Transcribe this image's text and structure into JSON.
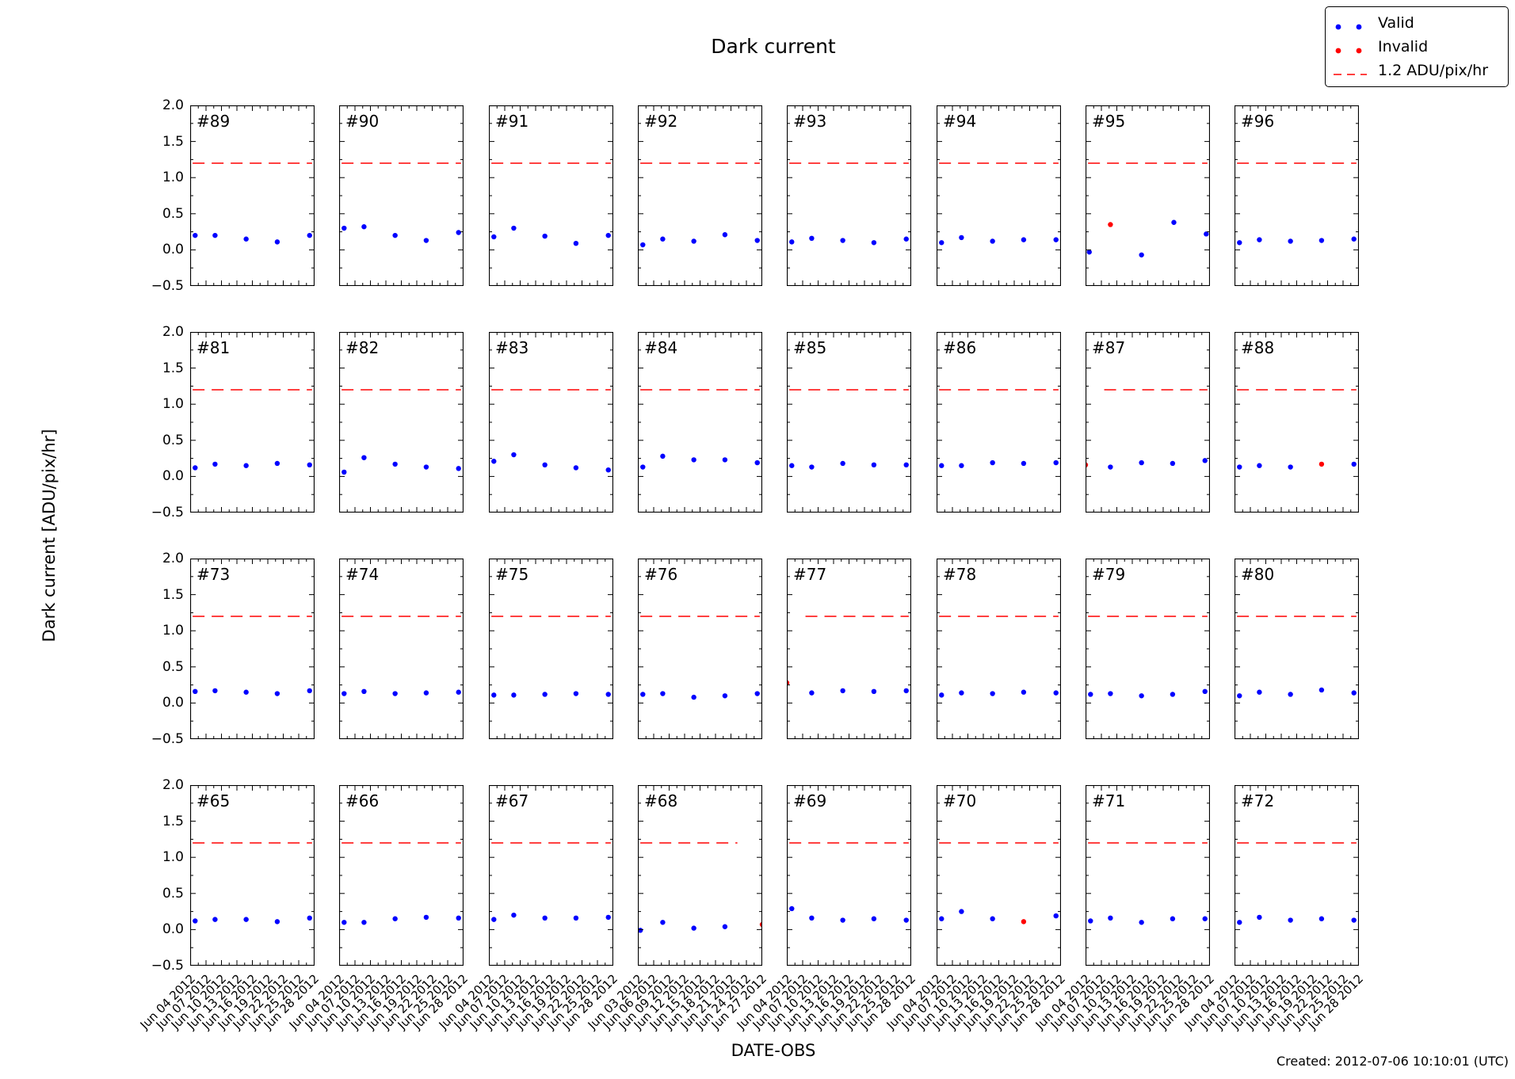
{
  "page": {
    "title": "Dark current",
    "ylabel": "Dark current [ADU/pix/hr]",
    "xlabel": "DATE-OBS",
    "created": "Created: 2012-07-06 10:10:01 (UTC)"
  },
  "legend": {
    "items": [
      {
        "label": "Valid",
        "marker": "two-dots",
        "color": "#0000ff"
      },
      {
        "label": "Invalid",
        "marker": "two-dots",
        "color": "#ff0000"
      },
      {
        "label": "1.2 ADU/pix/hr",
        "marker": "dashed-line",
        "color": "#ff0000"
      }
    ]
  },
  "chart_data": {
    "type": "scatter",
    "title": "Dark current",
    "xlabel": "DATE-OBS",
    "ylabel": "Dark current [ADU/pix/hr]",
    "grid": {
      "rows": 4,
      "cols": 8
    },
    "ylim": [
      -0.5,
      2.0
    ],
    "y_ticks": [
      2.0,
      1.5,
      1.0,
      0.5,
      0.0,
      -0.5
    ],
    "y_tick_labels": [
      "2.0",
      "1.5",
      "1.0",
      "0.5",
      "0.0",
      "−0.5"
    ],
    "threshold": {
      "value": 1.2,
      "label": "1.2 ADU/pix/hr",
      "color": "#ff0000"
    },
    "colors": {
      "valid": "#0000ff",
      "invalid": "#ff0000"
    },
    "point_format": [
      "x_fraction_of_axis",
      "value_ADU_per_pix_hr",
      "status(optional, default valid)"
    ],
    "x_tick_sets": {
      "default": [
        "Jun 04 2012",
        "Jun 07 2012",
        "Jun 10 2012",
        "Jun 13 2012",
        "Jun 16 2012",
        "Jun 19 2012",
        "Jun 22 2012",
        "Jun 25 2012",
        "Jun 28 2012"
      ],
      "col4": [
        "Jun 03 2012",
        "Jun 06 2012",
        "Jun 09 2012",
        "Jun 12 2012",
        "Jun 15 2012",
        "Jun 18 2012",
        "Jun 21 2012",
        "Jun 24 2012",
        "Jun 27 2012"
      ]
    },
    "panels": [
      {
        "id": "#89",
        "row": 0,
        "col": 0,
        "x_tick_set": "default",
        "points": [
          [
            0.04,
            0.2
          ],
          [
            0.2,
            0.2
          ],
          [
            0.45,
            0.15
          ],
          [
            0.7,
            0.11
          ],
          [
            0.96,
            0.2
          ]
        ]
      },
      {
        "id": "#90",
        "row": 0,
        "col": 1,
        "x_tick_set": "default",
        "points": [
          [
            0.04,
            0.3
          ],
          [
            0.2,
            0.32
          ],
          [
            0.45,
            0.2
          ],
          [
            0.7,
            0.13
          ],
          [
            0.96,
            0.24
          ]
        ]
      },
      {
        "id": "#91",
        "row": 0,
        "col": 2,
        "x_tick_set": "default",
        "points": [
          [
            0.04,
            0.18
          ],
          [
            0.2,
            0.3
          ],
          [
            0.45,
            0.19
          ],
          [
            0.7,
            0.09
          ],
          [
            0.96,
            0.2
          ]
        ]
      },
      {
        "id": "#92",
        "row": 0,
        "col": 3,
        "x_tick_set": "col4",
        "points": [
          [
            0.04,
            0.07
          ],
          [
            0.2,
            0.15
          ],
          [
            0.45,
            0.12
          ],
          [
            0.7,
            0.21
          ],
          [
            0.96,
            0.13
          ]
        ]
      },
      {
        "id": "#93",
        "row": 0,
        "col": 4,
        "x_tick_set": "default",
        "points": [
          [
            0.04,
            0.11
          ],
          [
            0.2,
            0.16
          ],
          [
            0.45,
            0.13
          ],
          [
            0.7,
            0.1
          ],
          [
            0.96,
            0.15
          ]
        ]
      },
      {
        "id": "#94",
        "row": 0,
        "col": 5,
        "x_tick_set": "default",
        "points": [
          [
            0.04,
            0.1
          ],
          [
            0.2,
            0.17
          ],
          [
            0.45,
            0.12
          ],
          [
            0.7,
            0.14
          ],
          [
            0.96,
            0.14
          ]
        ]
      },
      {
        "id": "#95",
        "row": 0,
        "col": 6,
        "x_tick_set": "default",
        "points": [
          [
            0.03,
            -0.03
          ],
          [
            0.2,
            0.35,
            "invalid"
          ],
          [
            0.45,
            -0.07
          ],
          [
            0.71,
            0.38
          ],
          [
            0.97,
            0.22
          ]
        ]
      },
      {
        "id": "#96",
        "row": 0,
        "col": 7,
        "x_tick_set": "default",
        "points": [
          [
            0.04,
            0.1
          ],
          [
            0.2,
            0.14
          ],
          [
            0.45,
            0.12
          ],
          [
            0.7,
            0.13
          ],
          [
            0.96,
            0.15
          ]
        ]
      },
      {
        "id": "#81",
        "row": 1,
        "col": 0,
        "x_tick_set": "default",
        "points": [
          [
            0.04,
            0.12
          ],
          [
            0.2,
            0.17
          ],
          [
            0.45,
            0.15
          ],
          [
            0.7,
            0.18
          ],
          [
            0.96,
            0.16
          ]
        ]
      },
      {
        "id": "#82",
        "row": 1,
        "col": 1,
        "x_tick_set": "default",
        "points": [
          [
            0.04,
            0.06
          ],
          [
            0.2,
            0.26
          ],
          [
            0.45,
            0.17
          ],
          [
            0.7,
            0.13
          ],
          [
            0.96,
            0.11
          ]
        ]
      },
      {
        "id": "#83",
        "row": 1,
        "col": 2,
        "x_tick_set": "default",
        "points": [
          [
            0.04,
            0.21
          ],
          [
            0.2,
            0.3
          ],
          [
            0.45,
            0.16
          ],
          [
            0.7,
            0.12
          ],
          [
            0.96,
            0.09
          ]
        ]
      },
      {
        "id": "#84",
        "row": 1,
        "col": 3,
        "x_tick_set": "col4",
        "points": [
          [
            0.04,
            0.13
          ],
          [
            0.2,
            0.28
          ],
          [
            0.45,
            0.23
          ],
          [
            0.7,
            0.23
          ],
          [
            0.96,
            0.19
          ]
        ]
      },
      {
        "id": "#85",
        "row": 1,
        "col": 4,
        "x_tick_set": "default",
        "points": [
          [
            0.04,
            0.15
          ],
          [
            0.2,
            0.13
          ],
          [
            0.45,
            0.18
          ],
          [
            0.7,
            0.16
          ],
          [
            0.96,
            0.16
          ]
        ]
      },
      {
        "id": "#86",
        "row": 1,
        "col": 5,
        "x_tick_set": "default",
        "points": [
          [
            0.04,
            0.15
          ],
          [
            0.2,
            0.15
          ],
          [
            0.45,
            0.19
          ],
          [
            0.7,
            0.18
          ],
          [
            0.96,
            0.19
          ]
        ]
      },
      {
        "id": "#87",
        "row": 1,
        "col": 6,
        "x_tick_set": "default",
        "dash_span": [
          0.15,
          0.98
        ],
        "points": [
          [
            0.0,
            0.16,
            "invalid"
          ],
          [
            0.2,
            0.13
          ],
          [
            0.45,
            0.19
          ],
          [
            0.7,
            0.18
          ],
          [
            0.96,
            0.22
          ]
        ]
      },
      {
        "id": "#88",
        "row": 1,
        "col": 7,
        "x_tick_set": "default",
        "points": [
          [
            0.04,
            0.13
          ],
          [
            0.2,
            0.15
          ],
          [
            0.45,
            0.13
          ],
          [
            0.7,
            0.17,
            "invalid"
          ],
          [
            0.96,
            0.17
          ]
        ]
      },
      {
        "id": "#73",
        "row": 2,
        "col": 0,
        "x_tick_set": "default",
        "points": [
          [
            0.04,
            0.16
          ],
          [
            0.2,
            0.17
          ],
          [
            0.45,
            0.15
          ],
          [
            0.7,
            0.13
          ],
          [
            0.96,
            0.17
          ]
        ]
      },
      {
        "id": "#74",
        "row": 2,
        "col": 1,
        "x_tick_set": "default",
        "points": [
          [
            0.04,
            0.13
          ],
          [
            0.2,
            0.16
          ],
          [
            0.45,
            0.13
          ],
          [
            0.7,
            0.14
          ],
          [
            0.96,
            0.15
          ]
        ]
      },
      {
        "id": "#75",
        "row": 2,
        "col": 2,
        "x_tick_set": "default",
        "points": [
          [
            0.04,
            0.11
          ],
          [
            0.2,
            0.11
          ],
          [
            0.45,
            0.12
          ],
          [
            0.7,
            0.13
          ],
          [
            0.96,
            0.12
          ]
        ]
      },
      {
        "id": "#76",
        "row": 2,
        "col": 3,
        "x_tick_set": "col4",
        "points": [
          [
            0.04,
            0.12
          ],
          [
            0.2,
            0.13
          ],
          [
            0.45,
            0.08
          ],
          [
            0.7,
            0.1
          ],
          [
            0.96,
            0.13
          ]
        ]
      },
      {
        "id": "#77",
        "row": 2,
        "col": 4,
        "x_tick_set": "default",
        "dash_span": [
          0.15,
          0.98
        ],
        "points": [
          [
            0.0,
            0.28,
            "invalid"
          ],
          [
            0.2,
            0.14
          ],
          [
            0.45,
            0.17
          ],
          [
            0.7,
            0.16
          ],
          [
            0.96,
            0.17
          ]
        ]
      },
      {
        "id": "#78",
        "row": 2,
        "col": 5,
        "x_tick_set": "default",
        "points": [
          [
            0.04,
            0.11
          ],
          [
            0.2,
            0.14
          ],
          [
            0.45,
            0.13
          ],
          [
            0.7,
            0.15
          ],
          [
            0.96,
            0.14
          ]
        ]
      },
      {
        "id": "#79",
        "row": 2,
        "col": 6,
        "x_tick_set": "default",
        "points": [
          [
            0.04,
            0.12
          ],
          [
            0.2,
            0.13
          ],
          [
            0.45,
            0.1
          ],
          [
            0.7,
            0.12
          ],
          [
            0.96,
            0.16
          ]
        ]
      },
      {
        "id": "#80",
        "row": 2,
        "col": 7,
        "x_tick_set": "default",
        "points": [
          [
            0.04,
            0.1
          ],
          [
            0.2,
            0.15
          ],
          [
            0.45,
            0.12
          ],
          [
            0.7,
            0.18
          ],
          [
            0.96,
            0.14
          ]
        ]
      },
      {
        "id": "#65",
        "row": 3,
        "col": 0,
        "x_tick_set": "default",
        "points": [
          [
            0.04,
            0.12
          ],
          [
            0.2,
            0.14
          ],
          [
            0.45,
            0.14
          ],
          [
            0.7,
            0.11
          ],
          [
            0.96,
            0.16
          ]
        ]
      },
      {
        "id": "#66",
        "row": 3,
        "col": 1,
        "x_tick_set": "default",
        "points": [
          [
            0.04,
            0.1
          ],
          [
            0.2,
            0.1
          ],
          [
            0.45,
            0.15
          ],
          [
            0.7,
            0.17
          ],
          [
            0.96,
            0.16
          ]
        ]
      },
      {
        "id": "#67",
        "row": 3,
        "col": 2,
        "x_tick_set": "default",
        "points": [
          [
            0.04,
            0.14
          ],
          [
            0.2,
            0.2
          ],
          [
            0.45,
            0.16
          ],
          [
            0.7,
            0.16
          ],
          [
            0.96,
            0.17
          ]
        ]
      },
      {
        "id": "#68",
        "row": 3,
        "col": 3,
        "x_tick_set": "col4",
        "dash_span": [
          0.02,
          0.8
        ],
        "points": [
          [
            0.02,
            -0.01
          ],
          [
            0.2,
            0.1
          ],
          [
            0.45,
            0.02
          ],
          [
            0.7,
            0.04
          ],
          [
            1.0,
            0.07,
            "invalid"
          ]
        ]
      },
      {
        "id": "#69",
        "row": 3,
        "col": 4,
        "x_tick_set": "default",
        "points": [
          [
            0.04,
            0.29
          ],
          [
            0.2,
            0.16
          ],
          [
            0.45,
            0.13
          ],
          [
            0.7,
            0.15
          ],
          [
            0.96,
            0.13
          ]
        ]
      },
      {
        "id": "#70",
        "row": 3,
        "col": 5,
        "x_tick_set": "default",
        "points": [
          [
            0.04,
            0.15
          ],
          [
            0.2,
            0.25
          ],
          [
            0.45,
            0.15
          ],
          [
            0.7,
            0.11,
            "invalid"
          ],
          [
            0.96,
            0.19
          ]
        ]
      },
      {
        "id": "#71",
        "row": 3,
        "col": 6,
        "x_tick_set": "default",
        "points": [
          [
            0.04,
            0.12
          ],
          [
            0.2,
            0.16
          ],
          [
            0.45,
            0.1
          ],
          [
            0.7,
            0.15
          ],
          [
            0.96,
            0.15
          ]
        ]
      },
      {
        "id": "#72",
        "row": 3,
        "col": 7,
        "x_tick_set": "default",
        "points": [
          [
            0.04,
            0.1
          ],
          [
            0.2,
            0.17
          ],
          [
            0.45,
            0.13
          ],
          [
            0.7,
            0.15
          ],
          [
            0.96,
            0.13
          ]
        ]
      }
    ]
  }
}
